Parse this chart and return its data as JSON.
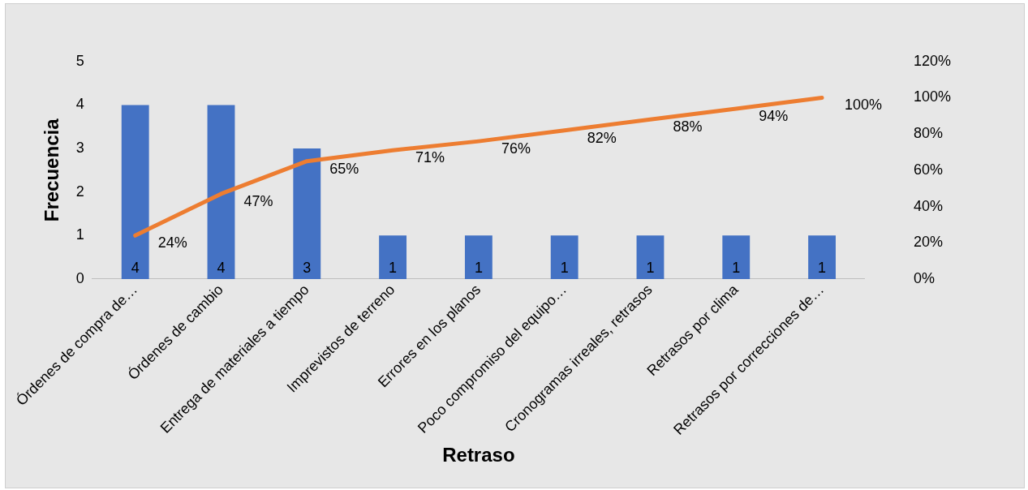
{
  "chart_data": {
    "type": "bar",
    "xlabel": "Retraso",
    "ylabel": "Frecuencia",
    "categories": [
      "Órdenes de compra de…",
      "Órdenes de cambio",
      "Entrega de materiales a tiempo",
      "Imprevistos de terreno",
      "Errores en los planos",
      "Poco compromiso del equipo…",
      "Cronogramas irreales, retrasos",
      "Retrasos por clima",
      "Retrasos por correcciones de…"
    ],
    "series": [
      {
        "color": "#4472c4",
        "values": [
          4,
          4,
          3,
          1,
          1,
          1,
          1,
          1,
          1
        ],
        "value_labels": [
          "4",
          "4",
          "3",
          "1",
          "1",
          "1",
          "1",
          "1",
          "1"
        ]
      },
      {
        "type": "line",
        "axis": "y2",
        "color": "#ed7d31",
        "values": [
          24,
          47,
          65,
          71,
          76,
          82,
          88,
          94,
          100
        ],
        "value_labels": [
          "24%",
          "47%",
          "65%",
          "71%",
          "76%",
          "82%",
          "88%",
          "94%",
          "100%"
        ]
      }
    ],
    "ylim": [
      0,
      5
    ],
    "yticks": [
      0,
      1,
      2,
      3,
      4,
      5
    ],
    "y2lim": [
      0,
      120
    ],
    "y2ticks": [
      {
        "value": 0,
        "label": "0%"
      },
      {
        "value": 20,
        "label": "20%"
      },
      {
        "value": 40,
        "label": "40%"
      },
      {
        "value": 60,
        "label": "60%"
      },
      {
        "value": 80,
        "label": "80%"
      },
      {
        "value": 100,
        "label": "100%"
      },
      {
        "value": 120,
        "label": "120%"
      }
    ],
    "legend": false,
    "marker": "none",
    "line_style": "solid"
  }
}
